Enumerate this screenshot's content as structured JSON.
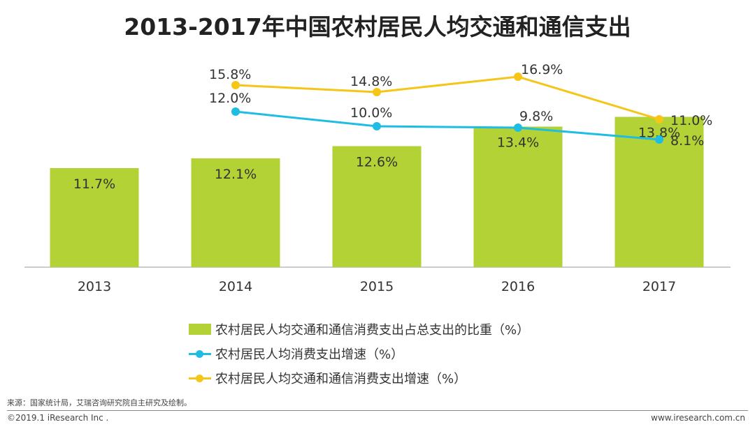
{
  "chart_data": {
    "type": "bar",
    "title": "2013-2017年中国农村居民人均交通和通信支出",
    "categories": [
      "2013",
      "2014",
      "2015",
      "2016",
      "2017"
    ],
    "series": [
      {
        "name": "农村居民人均交通和通信消费支出占总支出的比重（%）",
        "kind": "bar",
        "color": "#b2d235",
        "values": [
          11.7,
          12.1,
          12.6,
          13.4,
          13.8
        ],
        "labels": [
          "11.7%",
          "12.1%",
          "12.6%",
          "13.4%",
          "13.8%"
        ]
      },
      {
        "name": "农村居民人均消费支出增速（%）",
        "kind": "line",
        "color": "#1fbce3",
        "values": [
          null,
          12.0,
          10.0,
          9.8,
          8.1
        ],
        "labels": [
          null,
          "12.0%",
          "10.0%",
          "9.8%",
          "8.1%"
        ]
      },
      {
        "name": "农村居民人均交通和通信消费支出增速（%）",
        "kind": "line",
        "color": "#f5c518",
        "values": [
          null,
          15.8,
          14.8,
          16.9,
          11.0
        ],
        "labels": [
          null,
          "15.8%",
          "14.8%",
          "16.9%",
          "11.0%"
        ]
      }
    ],
    "xlabel": "",
    "ylabel": "",
    "grid": false,
    "legend_position": "bottom-center"
  },
  "footer": {
    "source": "来源：国家统计局，艾瑞咨询研究院自主研究及绘制。",
    "copyright": "©2019.1 iResearch Inc .",
    "website": "www.iresearch.com.cn"
  }
}
